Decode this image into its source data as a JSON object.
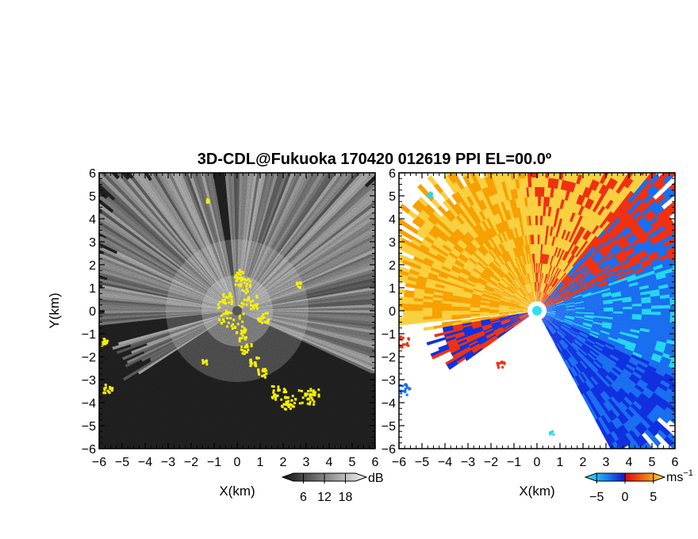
{
  "title": "3D-CDL@Fukuoka 170420 012619 PPI EL=00.0º",
  "chart_data": [
    {
      "type": "heatmap",
      "panel": "left",
      "quantity": "SNR",
      "xlabel": "X(km)",
      "ylabel": "Y(km)",
      "xlim": [
        -6,
        6
      ],
      "ylim": [
        -6,
        6
      ],
      "xticks": [
        "−6",
        "−5",
        "−4",
        "−3",
        "−2",
        "−1",
        "0",
        "1",
        "2",
        "3",
        "4",
        "5",
        "6"
      ],
      "yticks": [
        "−6",
        "−5",
        "−4",
        "−3",
        "−2",
        "−1",
        "0",
        "1",
        "2",
        "3",
        "4",
        "5",
        "6"
      ],
      "colorbar": {
        "unit": "dB",
        "ticks": [
          6,
          12,
          18
        ],
        "tick_labels": [
          "6",
          "12",
          "18"
        ],
        "range": [
          0,
          24
        ],
        "colormap": "grayscale"
      },
      "flag_color": "#f5f000"
    },
    {
      "type": "heatmap",
      "panel": "right",
      "quantity": "radial velocity",
      "xlabel": "X(km)",
      "xlim": [
        -6,
        6
      ],
      "ylim": [
        -6,
        6
      ],
      "xticks": [
        "−6",
        "−5",
        "−4",
        "−3",
        "−2",
        "−1",
        "0",
        "1",
        "2",
        "3",
        "4",
        "5",
        "6"
      ],
      "yticks": [
        "−6",
        "−5",
        "−4",
        "−3",
        "−2",
        "−1",
        "0",
        "1",
        "2",
        "3",
        "4",
        "5",
        "6"
      ],
      "colorbar": {
        "unit": "ms",
        "unit_exp": "−1",
        "ticks": [
          -5,
          0,
          5
        ],
        "tick_labels": [
          "−5",
          "0",
          "5"
        ],
        "range": [
          -7,
          7
        ],
        "colormap": "cyan-blue-red-orange"
      }
    }
  ],
  "colors": {
    "snr_bg": "#2a2a2a",
    "snr_bright": "#d8d8d8",
    "flag": "#f5f000",
    "vel_neg_light": "#22d8f0",
    "vel_neg": "#1a6ef0",
    "vel_neg_dark": "#1030e0",
    "vel_pos": "#f03010",
    "vel_pos_light": "#f8a000",
    "vel_pos_lighter": "#f8d040"
  }
}
